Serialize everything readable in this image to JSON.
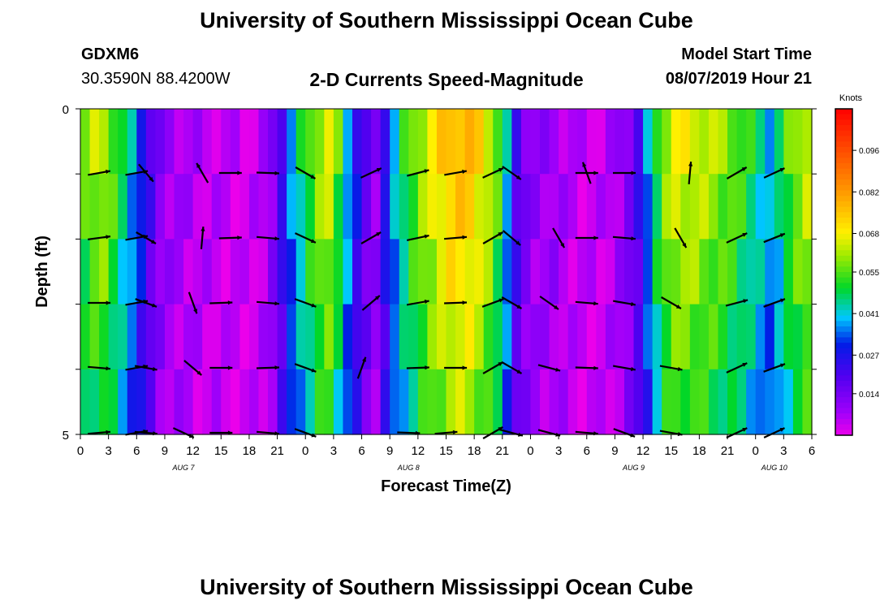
{
  "page": {
    "title_top": "University of Southern Mississippi Ocean Cube",
    "title_bottom": "University of Southern Mississippi Ocean Cube",
    "station_id": "GDXM6",
    "station_coords": "30.3590N 88.4200W",
    "plot_title": "2-D Currents Speed-Magnitude",
    "model_start_label": "Model Start Time",
    "model_start_value": "08/07/2019 Hour 21"
  },
  "chart_data": {
    "type": "heatmap",
    "title": "2-D Currents Speed-Magnitude",
    "xlabel": "Forecast Time(Z)",
    "ylabel": "Depth (ft)",
    "x_range_hours": [
      0,
      78
    ],
    "y_range_ft": [
      0,
      5
    ],
    "y_ticks": [
      "0",
      "5"
    ],
    "x_tick_labels": [
      "0",
      "3",
      "6",
      "9",
      "12",
      "15",
      "18",
      "21",
      "0",
      "3",
      "6",
      "9",
      "12",
      "15",
      "18",
      "21",
      "0",
      "3",
      "6",
      "9",
      "12",
      "15",
      "18",
      "21",
      "0",
      "3",
      "6"
    ],
    "date_labels": [
      {
        "text": "AUG 7",
        "hour": 11
      },
      {
        "text": "AUG 8",
        "hour": 35
      },
      {
        "text": "AUG 9",
        "hour": 59
      },
      {
        "text": "AUG 10",
        "hour": 74
      }
    ],
    "colorbar": {
      "title": "Knots",
      "ticks": [
        "0.096",
        "0.082",
        "0.068",
        "0.055",
        "0.041",
        "0.027",
        "0.014"
      ],
      "range": [
        0.0,
        0.11
      ]
    },
    "speed_profile_knots": [
      0.057,
      0.062,
      0.063,
      0.056,
      0.048,
      0.04,
      0.031,
      0.02,
      0.012,
      0.009,
      0.008,
      0.007,
      0.006,
      0.005,
      0.005,
      0.004,
      0.004,
      0.003,
      0.004,
      0.006,
      0.012,
      0.024,
      0.037,
      0.047,
      0.055,
      0.062,
      0.066,
      0.055,
      0.04,
      0.027,
      0.017,
      0.011,
      0.027,
      0.04,
      0.05,
      0.057,
      0.063,
      0.068,
      0.073,
      0.077,
      0.078,
      0.077,
      0.072,
      0.066,
      0.056,
      0.04,
      0.022,
      0.014,
      0.01,
      0.009,
      0.009,
      0.007,
      0.005,
      0.004,
      0.004,
      0.004,
      0.006,
      0.009,
      0.014,
      0.022,
      0.037,
      0.052,
      0.062,
      0.067,
      0.067,
      0.066,
      0.064,
      0.062,
      0.06,
      0.058,
      0.054,
      0.05,
      0.045,
      0.04,
      0.046,
      0.055,
      0.061,
      0.065
    ],
    "depth_rows": 5,
    "vectors": [
      [
        [
          2,
          80
        ],
        [
          6,
          80
        ],
        [
          7,
          140
        ],
        [
          13,
          330
        ],
        [
          16,
          90
        ],
        [
          20,
          92
        ],
        [
          24,
          120
        ],
        [
          31,
          65
        ],
        [
          36,
          75
        ],
        [
          40,
          80
        ],
        [
          44,
          65
        ],
        [
          46,
          125
        ],
        [
          54,
          340
        ],
        [
          54,
          90
        ],
        [
          58,
          90
        ],
        [
          65,
          5
        ],
        [
          70,
          60
        ],
        [
          74,
          65
        ]
      ],
      [
        [
          2,
          82
        ],
        [
          6,
          80
        ],
        [
          7,
          120
        ],
        [
          13,
          5
        ],
        [
          16,
          88
        ],
        [
          20,
          95
        ],
        [
          24,
          115
        ],
        [
          31,
          60
        ],
        [
          36,
          78
        ],
        [
          40,
          85
        ],
        [
          44,
          60
        ],
        [
          46,
          130
        ],
        [
          51,
          150
        ],
        [
          54,
          90
        ],
        [
          58,
          95
        ],
        [
          64,
          150
        ],
        [
          70,
          65
        ],
        [
          74,
          68
        ]
      ],
      [
        [
          2,
          90
        ],
        [
          6,
          80
        ],
        [
          7,
          110
        ],
        [
          12,
          160
        ],
        [
          15,
          88
        ],
        [
          20,
          95
        ],
        [
          24,
          110
        ],
        [
          31,
          50
        ],
        [
          36,
          80
        ],
        [
          40,
          88
        ],
        [
          44,
          70
        ],
        [
          46,
          120
        ],
        [
          50,
          125
        ],
        [
          54,
          95
        ],
        [
          58,
          100
        ],
        [
          63,
          120
        ],
        [
          70,
          75
        ],
        [
          74,
          70
        ]
      ],
      [
        [
          2,
          95
        ],
        [
          6,
          80
        ],
        [
          7,
          100
        ],
        [
          12,
          130
        ],
        [
          15,
          90
        ],
        [
          20,
          88
        ],
        [
          24,
          110
        ],
        [
          30,
          20
        ],
        [
          36,
          88
        ],
        [
          40,
          90
        ],
        [
          44,
          60
        ],
        [
          46,
          120
        ],
        [
          50,
          105
        ],
        [
          54,
          92
        ],
        [
          58,
          100
        ],
        [
          63,
          100
        ],
        [
          70,
          65
        ],
        [
          74,
          70
        ]
      ],
      [
        [
          2,
          85
        ],
        [
          6,
          80
        ],
        [
          7,
          95
        ],
        [
          11,
          115
        ],
        [
          15,
          90
        ],
        [
          20,
          95
        ],
        [
          24,
          110
        ],
        [
          35,
          92
        ],
        [
          39,
          85
        ],
        [
          44,
          60
        ],
        [
          46,
          105
        ],
        [
          50,
          105
        ],
        [
          54,
          95
        ],
        [
          58,
          110
        ],
        [
          63,
          100
        ],
        [
          70,
          65
        ],
        [
          74,
          65
        ]
      ]
    ]
  }
}
